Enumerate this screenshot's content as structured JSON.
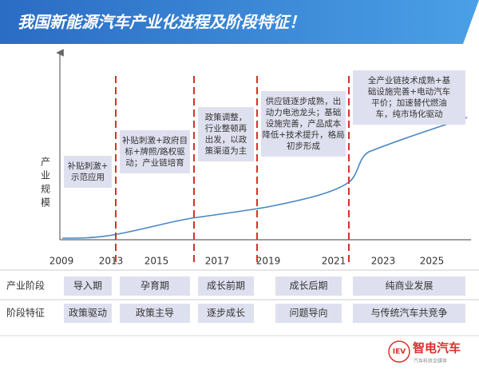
{
  "header": {
    "title": "我国新能源汽车产业化进程及阶段特征！"
  },
  "axis": {
    "y_label": [
      "产",
      "业",
      "规",
      "模"
    ],
    "years": [
      "2009",
      "2013",
      "2015",
      "2017",
      "2019",
      "2021",
      "2023",
      "2025"
    ]
  },
  "phases": [
    {
      "lines": [
        "补贴刺激+",
        "示范应用"
      ],
      "stage": "导入期",
      "feature": "政策驱动"
    },
    {
      "lines": [
        "补贴刺激+政府目",
        "标+牌照/路权驱",
        "动；产业链培育"
      ],
      "stage": "孕育期",
      "feature": "政策主导"
    },
    {
      "lines": [
        "政策调整，",
        "行业整顿再",
        "出发，以政",
        "策渠道为主"
      ],
      "stage": "成长前期",
      "feature": "逐步成长"
    },
    {
      "lines": [
        "供应链逐步成熟，出",
        "动力电池龙头；基础",
        "设施完善，产品成本",
        "降低+技术提升，格局",
        "初步形成"
      ],
      "stage": "成长后期",
      "feature": "问题导向"
    },
    {
      "lines": [
        "全产业链技术成熟+基",
        "础设施完善+电动汽车",
        "平价；加速替代燃油",
        "车，纯市场化驱动"
      ],
      "stage": "纯商业发展",
      "feature": "与传统汽车共竞争"
    }
  ],
  "rows": {
    "stage_label": "产业阶段",
    "feature_label": "阶段特征"
  },
  "logo": {
    "badge": "IEV",
    "name": "智电汽车",
    "tagline": "汽车科技全媒体"
  }
}
